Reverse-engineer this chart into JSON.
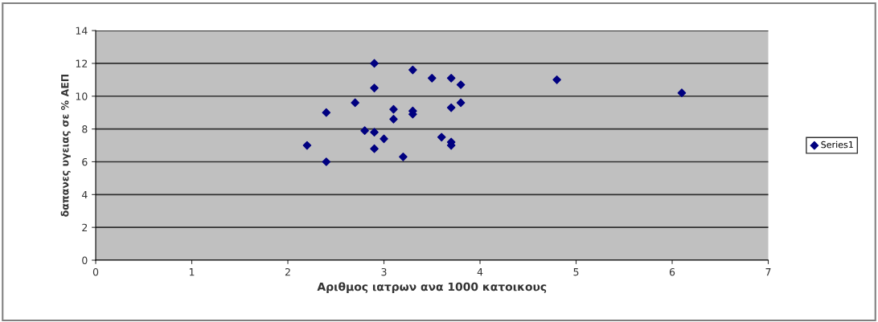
{
  "chart_data": {
    "type": "scatter",
    "xlabel": "Αριθμος ιατρων ανα 1000 κατοικους",
    "ylabel": "δαπανες υγειας σε % ΑΕΠ",
    "x": [
      2.2,
      2.4,
      2.4,
      2.7,
      2.8,
      2.9,
      2.9,
      2.9,
      2.9,
      3.0,
      3.1,
      3.1,
      3.2,
      3.3,
      3.3,
      3.3,
      3.5,
      3.6,
      3.7,
      3.7,
      3.7,
      3.7,
      3.8,
      3.8,
      4.8,
      6.1
    ],
    "series": [
      {
        "name": "Series1",
        "color": "#000080",
        "values": [
          7.0,
          9.0,
          6.0,
          9.6,
          7.9,
          12.0,
          10.5,
          7.8,
          6.8,
          7.4,
          9.2,
          8.6,
          6.3,
          11.6,
          9.1,
          8.9,
          11.1,
          7.5,
          11.1,
          9.3,
          7.2,
          7.0,
          10.7,
          9.6,
          11.0,
          10.2
        ]
      }
    ],
    "xlim": [
      0,
      7
    ],
    "xticks": [
      0,
      1,
      2,
      3,
      4,
      5,
      6,
      7
    ],
    "ylim": [
      0,
      14
    ],
    "yticks": [
      0,
      2,
      4,
      6,
      8,
      10,
      12,
      14
    ],
    "grid": "y",
    "legend": "right",
    "marker": "diamond"
  }
}
